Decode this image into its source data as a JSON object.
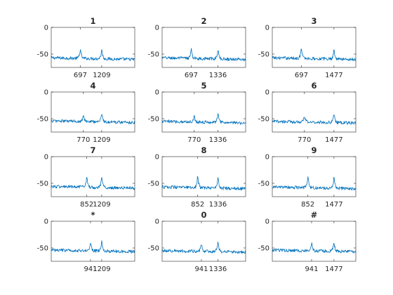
{
  "chart_data": [
    {
      "type": "line",
      "title": "1",
      "x": [
        697,
        1209
      ],
      "xtick_labels": [
        "697",
        "1209"
      ],
      "yticks": [
        0,
        -50
      ],
      "ylim": [
        -75,
        0
      ],
      "xlim": [
        0,
        2000
      ],
      "peak_x": [
        697,
        1209
      ],
      "peak_y": [
        -40,
        -40
      ],
      "noise_floor_y": -57,
      "line_color": "#0072BD"
    },
    {
      "type": "line",
      "title": "2",
      "x": [
        697,
        1336
      ],
      "xtick_labels": [
        "697",
        "1336"
      ],
      "yticks": [
        0,
        -50
      ],
      "ylim": [
        -75,
        0
      ],
      "xlim": [
        0,
        2000
      ],
      "peak_x": [
        697,
        1336
      ],
      "peak_y": [
        -40,
        -40
      ],
      "noise_floor_y": -57,
      "line_color": "#0072BD"
    },
    {
      "type": "line",
      "title": "3",
      "x": [
        697,
        1477
      ],
      "xtick_labels": [
        "697",
        "1477"
      ],
      "yticks": [
        0,
        -50
      ],
      "ylim": [
        -75,
        0
      ],
      "xlim": [
        0,
        2000
      ],
      "peak_x": [
        697,
        1477
      ],
      "peak_y": [
        -38,
        -40
      ],
      "noise_floor_y": -57,
      "line_color": "#0072BD"
    },
    {
      "type": "line",
      "title": "4",
      "x": [
        770,
        1209
      ],
      "xtick_labels": [
        "770",
        "1209"
      ],
      "yticks": [
        0,
        -50
      ],
      "ylim": [
        -75,
        0
      ],
      "xlim": [
        0,
        2000
      ],
      "peak_x": [
        770,
        1209
      ],
      "peak_y": [
        -41,
        -38
      ],
      "noise_floor_y": -54,
      "line_color": "#0072BD"
    },
    {
      "type": "line",
      "title": "5",
      "x": [
        770,
        1336
      ],
      "xtick_labels": [
        "770",
        "1336"
      ],
      "yticks": [
        0,
        -50
      ],
      "ylim": [
        -75,
        0
      ],
      "xlim": [
        0,
        2000
      ],
      "peak_x": [
        770,
        1336
      ],
      "peak_y": [
        -44,
        -37
      ],
      "noise_floor_y": -55,
      "line_color": "#0072BD"
    },
    {
      "type": "line",
      "title": "6",
      "x": [
        770,
        1477
      ],
      "xtick_labels": [
        "770",
        "1477"
      ],
      "yticks": [
        0,
        -50
      ],
      "ylim": [
        -75,
        0
      ],
      "xlim": [
        0,
        2000
      ],
      "peak_x": [
        770,
        1477
      ],
      "peak_y": [
        -44,
        -38
      ],
      "noise_floor_y": -55,
      "line_color": "#0072BD"
    },
    {
      "type": "line",
      "title": "7",
      "x": [
        852,
        1209
      ],
      "xtick_labels": [
        "852",
        "1209"
      ],
      "yticks": [
        0,
        -50
      ],
      "ylim": [
        -75,
        0
      ],
      "xlim": [
        0,
        2000
      ],
      "peak_x": [
        852,
        1209
      ],
      "peak_y": [
        -35,
        -37
      ],
      "noise_floor_y": -56,
      "line_color": "#0072BD"
    },
    {
      "type": "line",
      "title": "8",
      "x": [
        852,
        1336
      ],
      "xtick_labels": [
        "852",
        "1336"
      ],
      "yticks": [
        0,
        -50
      ],
      "ylim": [
        -75,
        0
      ],
      "xlim": [
        0,
        2000
      ],
      "peak_x": [
        852,
        1336
      ],
      "peak_y": [
        -34,
        -36
      ],
      "noise_floor_y": -57,
      "line_color": "#0072BD"
    },
    {
      "type": "line",
      "title": "9",
      "x": [
        852,
        1477
      ],
      "xtick_labels": [
        "852",
        "1477"
      ],
      "yticks": [
        0,
        -50
      ],
      "ylim": [
        -75,
        0
      ],
      "xlim": [
        0,
        2000
      ],
      "peak_x": [
        852,
        1477
      ],
      "peak_y": [
        -34,
        -37
      ],
      "noise_floor_y": -57,
      "line_color": "#0072BD"
    },
    {
      "type": "line",
      "title": "*",
      "x": [
        941,
        1209
      ],
      "xtick_labels": [
        "941",
        "1209"
      ],
      "yticks": [
        0,
        -50
      ],
      "ylim": [
        -75,
        0
      ],
      "xlim": [
        0,
        2000
      ],
      "peak_x": [
        941,
        1209
      ],
      "peak_y": [
        -38,
        -37
      ],
      "noise_floor_y": -54,
      "line_color": "#0072BD"
    },
    {
      "type": "line",
      "title": "0",
      "x": [
        941,
        1336
      ],
      "xtick_labels": [
        "941",
        "1336"
      ],
      "yticks": [
        0,
        -50
      ],
      "ylim": [
        -75,
        0
      ],
      "xlim": [
        0,
        2000
      ],
      "peak_x": [
        941,
        1336
      ],
      "peak_y": [
        -40,
        -36
      ],
      "noise_floor_y": -55,
      "line_color": "#0072BD"
    },
    {
      "type": "line",
      "title": "#",
      "x": [
        941,
        1477
      ],
      "xtick_labels": [
        "941",
        "1477"
      ],
      "yticks": [
        0,
        -50
      ],
      "ylim": [
        -75,
        0
      ],
      "xlim": [
        0,
        2000
      ],
      "peak_x": [
        941,
        1477
      ],
      "peak_y": [
        -40,
        -37
      ],
      "noise_floor_y": -54,
      "line_color": "#0072BD"
    }
  ]
}
